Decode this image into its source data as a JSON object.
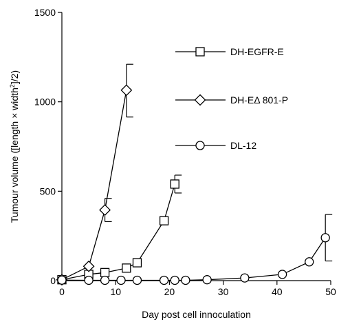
{
  "chart_data": {
    "type": "line",
    "xlabel": "Day post cell innoculation",
    "ylabel_parts": {
      "before": "Tumour volume ([length × width",
      "sup": "2",
      "after": "]/2)"
    },
    "xlim": [
      0,
      50
    ],
    "ylim": [
      0,
      1500
    ],
    "x_ticks": [
      0,
      10,
      20,
      30,
      40,
      50
    ],
    "y_ticks": [
      0,
      500,
      1000,
      1500
    ],
    "grid": false,
    "legend_position": "top-right",
    "series": [
      {
        "name": "DH-EGFR-E",
        "marker": "square",
        "x": [
          0,
          5,
          8,
          12,
          14,
          19,
          21
        ],
        "y": [
          5,
          35,
          45,
          70,
          100,
          335,
          540
        ],
        "errors": [
          {
            "x": 21,
            "low": 490,
            "high": 590
          }
        ]
      },
      {
        "name": "DH-EΔ 801-P",
        "marker": "diamond",
        "x": [
          0,
          5,
          8,
          12
        ],
        "y": [
          5,
          80,
          395,
          1065
        ],
        "errors": [
          {
            "x": 8,
            "low": 330,
            "high": 460
          },
          {
            "x": 12,
            "low": 915,
            "high": 1210
          }
        ]
      },
      {
        "name": "DL-12",
        "marker": "circle",
        "x": [
          0,
          5,
          8,
          11,
          14,
          19,
          21,
          23,
          27,
          34,
          41,
          46,
          49
        ],
        "y": [
          3,
          2,
          2,
          2,
          2,
          2,
          2,
          2,
          5,
          15,
          35,
          105,
          240
        ],
        "errors": [
          {
            "x": 49,
            "low": 110,
            "high": 370
          }
        ]
      }
    ]
  }
}
